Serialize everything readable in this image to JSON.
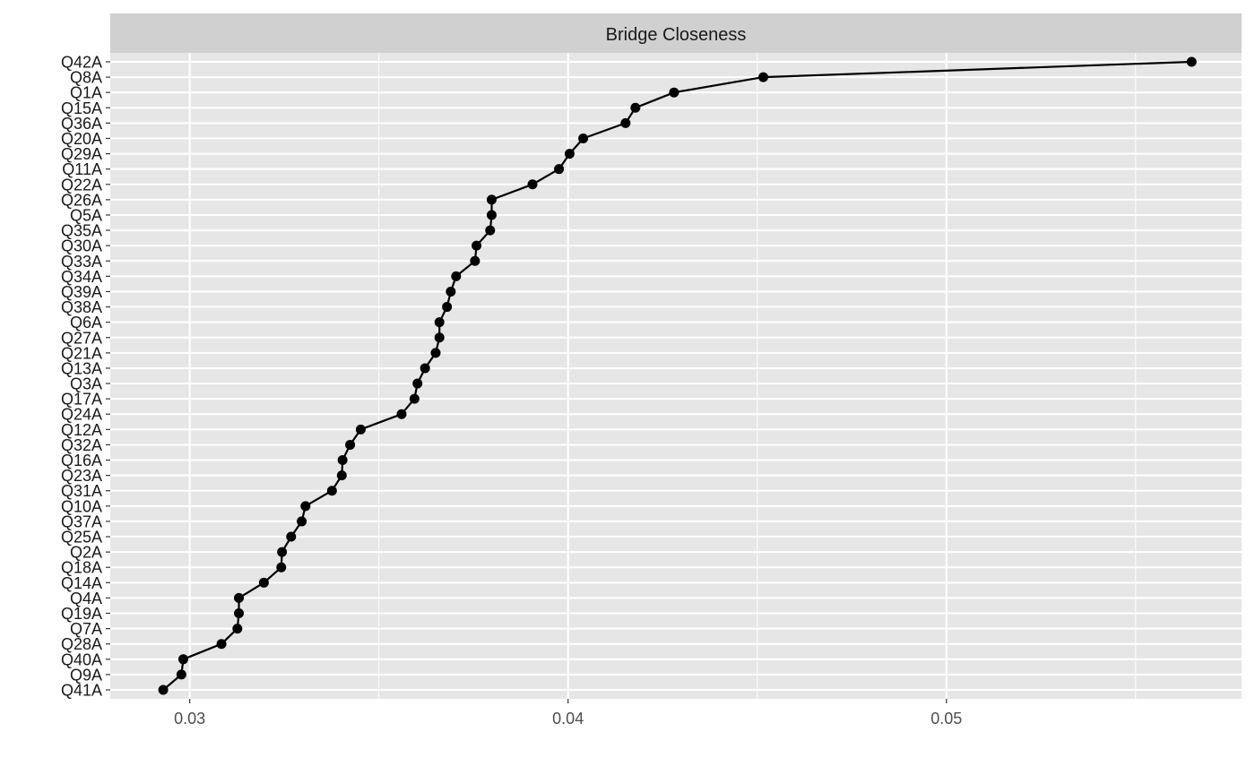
{
  "chart_data": {
    "type": "line",
    "title": "",
    "facet_label": "Bridge Closeness",
    "xlabel": "",
    "ylabel": "",
    "xlim": [
      0.0279,
      0.0578
    ],
    "x_ticks": [
      0.03,
      0.04,
      0.05
    ],
    "x_tick_labels": [
      "0.03",
      "0.04",
      "0.05"
    ],
    "grid": true,
    "legend": "none",
    "colors": {
      "panel": "#e6e6e6",
      "strip": "#d0d0d0",
      "gridline": "#ffffff",
      "line": "#000000",
      "point": "#000000"
    },
    "categories": [
      "Q41A",
      "Q9A",
      "Q40A",
      "Q28A",
      "Q7A",
      "Q19A",
      "Q4A",
      "Q14A",
      "Q18A",
      "Q2A",
      "Q25A",
      "Q37A",
      "Q10A",
      "Q31A",
      "Q23A",
      "Q16A",
      "Q32A",
      "Q12A",
      "Q24A",
      "Q17A",
      "Q3A",
      "Q13A",
      "Q21A",
      "Q27A",
      "Q6A",
      "Q38A",
      "Q39A",
      "Q34A",
      "Q33A",
      "Q30A",
      "Q35A",
      "Q5A",
      "Q26A",
      "Q22A",
      "Q11A",
      "Q29A",
      "Q20A",
      "Q36A",
      "Q15A",
      "Q1A",
      "Q8A",
      "Q42A"
    ],
    "series": [
      {
        "values": [
          0.0293,
          0.02978,
          0.02983,
          0.03084,
          0.03126,
          0.0313,
          0.0313,
          0.03196,
          0.03242,
          0.03244,
          0.03268,
          0.03296,
          0.03306,
          0.03376,
          0.03402,
          0.03404,
          0.03424,
          0.03452,
          0.0356,
          0.03594,
          0.03602,
          0.03622,
          0.0365,
          0.0366,
          0.0366,
          0.0368,
          0.0369,
          0.03704,
          0.03754,
          0.03758,
          0.03794,
          0.03798,
          0.03798,
          0.03906,
          0.03976,
          0.04004,
          0.0404,
          0.04152,
          0.04178,
          0.0428,
          0.04516,
          0.05648
        ]
      }
    ]
  }
}
